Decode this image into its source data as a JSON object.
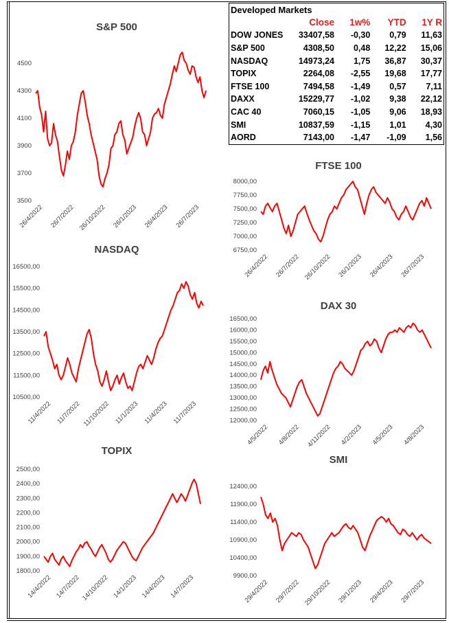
{
  "table": {
    "title": "Developed Markets",
    "headers": [
      "Close",
      "1w%",
      "YTD",
      "1Y R"
    ],
    "rows": [
      {
        "name": "DOW JONES",
        "close": "33407,58",
        "w1": "-0,30",
        "ytd": "0,79",
        "y1": "11,63"
      },
      {
        "name": "S&P 500",
        "close": "4308,50",
        "w1": "0,48",
        "ytd": "12,22",
        "y1": "15,06"
      },
      {
        "name": "NASDAQ",
        "close": "14973,24",
        "w1": "1,75",
        "ytd": "36,87",
        "y1": "30,37"
      },
      {
        "name": "TOPIX",
        "close": "2264,08",
        "w1": "-2,55",
        "ytd": "19,68",
        "y1": "17,77"
      },
      {
        "name": "FTSE 100",
        "close": "7494,58",
        "w1": "-1,49",
        "ytd": "0,57",
        "y1": "7,11"
      },
      {
        "name": "DAXX",
        "close": "15229,77",
        "w1": "-1,02",
        "ytd": "9,38",
        "y1": "22,12"
      },
      {
        "name": "CAC 40",
        "close": "7060,15",
        "w1": "-1,05",
        "ytd": "9,06",
        "y1": "18,93"
      },
      {
        "name": "SMI",
        "close": "10837,59",
        "w1": "-1,15",
        "ytd": "1,01",
        "y1": "4,30"
      },
      {
        "name": "AORD",
        "close": "7143,00",
        "w1": "-1,47",
        "ytd": "-1,09",
        "y1": "1,56"
      }
    ]
  },
  "colors": {
    "series": "#ff0000",
    "header": "#e02020",
    "axis_text": "#404040"
  },
  "chart_data": [
    {
      "id": "sp500",
      "type": "line",
      "title": "S&P 500",
      "ylim": [
        3500,
        4600
      ],
      "yticks": [
        "3500",
        "3700",
        "3900",
        "4100",
        "4300",
        "4500"
      ],
      "ytick_values": [
        3500,
        3700,
        3900,
        4100,
        4300,
        4500
      ],
      "xticks": [
        "26/4/2022",
        "26/7/2022",
        "26/10/2022",
        "26/1/2023",
        "26/4/2023",
        "26/7/2023"
      ],
      "series": [
        {
          "values": [
            4280,
            4300,
            4180,
            4120,
            4000,
            4150,
            3950,
            3900,
            3920,
            4060,
            3980,
            3930,
            3820,
            3720,
            3680,
            3760,
            3860,
            3800,
            3900,
            3930,
            4000,
            4120,
            4200,
            4280,
            4300,
            4220,
            4120,
            4060,
            3980,
            3920,
            3860,
            3800,
            3680,
            3620,
            3600,
            3660,
            3700,
            3760,
            3880,
            3900,
            3980,
            4000,
            4060,
            4080,
            3980,
            3940,
            3840,
            3880,
            3920,
            3960,
            4040,
            4100,
            4140,
            4100,
            4000,
            3980,
            3900,
            3950,
            4000,
            4100,
            4130,
            4140,
            4170,
            4120,
            4100,
            4200,
            4250,
            4300,
            4350,
            4420,
            4480,
            4440,
            4500,
            4560,
            4580,
            4520,
            4500,
            4450,
            4420,
            4480,
            4470,
            4400,
            4360,
            4400,
            4300,
            4250,
            4300
          ]
        }
      ]
    },
    {
      "id": "ftse100",
      "type": "line",
      "title": "FTSE 100",
      "ylim": [
        6750,
        8000
      ],
      "yticks": [
        "6750,00",
        "7000,00",
        "7250,00",
        "7500,00",
        "7750,00",
        "8000,00"
      ],
      "ytick_values": [
        6750,
        7000,
        7250,
        7500,
        7750,
        8000
      ],
      "xticks": [
        "26/4/2022",
        "26/7/2022",
        "26/10/2022",
        "26/1/2023",
        "26/4/2023",
        "26/7/2023"
      ],
      "series": [
        {
          "values": [
            7450,
            7400,
            7550,
            7600,
            7520,
            7450,
            7550,
            7600,
            7450,
            7300,
            7150,
            7050,
            7200,
            7000,
            7100,
            7250,
            7400,
            7450,
            7500,
            7550,
            7420,
            7300,
            7200,
            7100,
            7050,
            6950,
            6900,
            7000,
            7150,
            7300,
            7400,
            7450,
            7550,
            7500,
            7600,
            7700,
            7750,
            7850,
            7900,
            7950,
            8000,
            7900,
            7850,
            7700,
            7550,
            7400,
            7600,
            7750,
            7850,
            7900,
            7800,
            7750,
            7700,
            7650,
            7600,
            7700,
            7620,
            7500,
            7450,
            7350,
            7300,
            7400,
            7450,
            7550,
            7450,
            7350,
            7300,
            7400,
            7500,
            7600,
            7650,
            7550,
            7700,
            7600,
            7500
          ]
        }
      ]
    },
    {
      "id": "nasdaq",
      "type": "line",
      "title": "NASDAQ",
      "ylim": [
        10500,
        16500
      ],
      "yticks": [
        "10500,00",
        "11500,00",
        "12500,00",
        "13500,00",
        "14500,00",
        "15500,00",
        "16500,00"
      ],
      "ytick_values": [
        10500,
        11500,
        12500,
        13500,
        14500,
        15500,
        16500
      ],
      "xticks": [
        "11/4/2022",
        "11/7/2022",
        "11/10/2022",
        "11/1/2023",
        "11/4/2023",
        "11/7/2023"
      ],
      "series": [
        {
          "values": [
            13300,
            13500,
            12800,
            12500,
            12200,
            11800,
            12000,
            11500,
            11300,
            11500,
            11900,
            12300,
            12000,
            11600,
            11400,
            11200,
            11800,
            12200,
            12600,
            13000,
            13400,
            13600,
            13200,
            12500,
            12000,
            11700,
            11200,
            11000,
            11300,
            11700,
            11200,
            10800,
            11000,
            11300,
            11500,
            11100,
            11400,
            11600,
            11200,
            10900,
            11000,
            10800,
            11200,
            11600,
            11900,
            12000,
            11800,
            12100,
            12400,
            12200,
            12000,
            12300,
            12700,
            13000,
            13200,
            13300,
            13600,
            13900,
            14200,
            14500,
            14700,
            15000,
            15300,
            15400,
            15700,
            15500,
            15800,
            15600,
            15200,
            15000,
            15300,
            14800,
            14600,
            14900,
            14700
          ]
        }
      ]
    },
    {
      "id": "dax30",
      "type": "line",
      "title": "DAX 30",
      "ylim": [
        12000,
        16500
      ],
      "yticks": [
        "12000,00",
        "12500,00",
        "13000,00",
        "13500,00",
        "14000,00",
        "14500,00",
        "15000,00",
        "15500,00",
        "16000,00",
        "16500,00"
      ],
      "ytick_values": [
        12000,
        12500,
        13000,
        13500,
        14000,
        14500,
        15000,
        15500,
        16000,
        16500
      ],
      "xticks": [
        "4/5/2022",
        "4/8/2022",
        "4/11/2022",
        "4/2/2023",
        "4/5/2023",
        "4/8/2023"
      ],
      "series": [
        {
          "values": [
            13800,
            14200,
            14400,
            14100,
            14600,
            14200,
            13900,
            13600,
            13400,
            13200,
            13100,
            13000,
            12800,
            12600,
            12900,
            13200,
            13500,
            13700,
            13800,
            13500,
            13200,
            13000,
            12800,
            12600,
            12400,
            12200,
            12300,
            12600,
            12900,
            13200,
            13500,
            13800,
            14100,
            14300,
            14400,
            14600,
            14500,
            14300,
            14200,
            14100,
            14000,
            14200,
            14500,
            14800,
            15100,
            15200,
            15400,
            15500,
            15300,
            15400,
            15600,
            15500,
            15200,
            15000,
            15300,
            15600,
            15800,
            15900,
            15900,
            16000,
            15900,
            16100,
            16000,
            15900,
            16100,
            16200,
            16100,
            16300,
            16200,
            16000,
            15900,
            16000,
            15800,
            15600,
            15400,
            15200
          ]
        }
      ]
    },
    {
      "id": "topix",
      "type": "line",
      "title": "TOPIX",
      "ylim": [
        1800,
        2500
      ],
      "yticks": [
        "1800,00",
        "1900,00",
        "2000,00",
        "2100,00",
        "2200,00",
        "2300,00",
        "2400,00",
        "2500,00"
      ],
      "ytick_values": [
        1800,
        1900,
        2000,
        2100,
        2200,
        2300,
        2400,
        2500
      ],
      "xticks": [
        "14/4/2022",
        "14/7/2022",
        "14/10/2022",
        "14/1/2023",
        "14/4/2023",
        "14/7/2023"
      ],
      "series": [
        {
          "values": [
            1900,
            1880,
            1860,
            1900,
            1920,
            1880,
            1860,
            1840,
            1880,
            1900,
            1870,
            1850,
            1830,
            1870,
            1900,
            1930,
            1950,
            1980,
            1960,
            1990,
            2000,
            1970,
            1950,
            1920,
            1900,
            1930,
            1960,
            1980,
            1950,
            1920,
            1880,
            1860,
            1880,
            1910,
            1940,
            1960,
            1980,
            2000,
            1990,
            1960,
            1930,
            1900,
            1880,
            1870,
            1900,
            1930,
            1960,
            1980,
            2000,
            2020,
            2040,
            2060,
            2090,
            2120,
            2150,
            2180,
            2210,
            2240,
            2270,
            2300,
            2330,
            2300,
            2270,
            2300,
            2330,
            2310,
            2280,
            2320,
            2360,
            2400,
            2430,
            2400,
            2330,
            2260
          ]
        }
      ]
    },
    {
      "id": "smi",
      "type": "line",
      "title": "SMI",
      "ylim": [
        9900,
        12400
      ],
      "yticks": [
        "9900,00",
        "10400,00",
        "10900,00",
        "11400,00",
        "11900,00",
        "12400,00"
      ],
      "ytick_values": [
        9900,
        10400,
        10900,
        11400,
        11900,
        12400
      ],
      "xticks": [
        "29/4/2022",
        "29/7/2022",
        "29/10/2022",
        "29/1/2023",
        "29/4/2023",
        "29/7/2023"
      ],
      "series": [
        {
          "values": [
            12100,
            11900,
            11600,
            11500,
            11650,
            11400,
            11500,
            11300,
            10900,
            10600,
            10800,
            10900,
            11000,
            11100,
            11050,
            11000,
            11100,
            11050,
            10900,
            10800,
            10700,
            10500,
            10300,
            10100,
            10200,
            10400,
            10600,
            10800,
            10900,
            11000,
            11100,
            11000,
            11050,
            11100,
            11200,
            11300,
            11350,
            11250,
            11200,
            11300,
            11200,
            11100,
            10900,
            10700,
            10600,
            10800,
            11000,
            11150,
            11300,
            11450,
            11500,
            11550,
            11500,
            11400,
            11500,
            11350,
            11300,
            11200,
            11100,
            11050,
            11200,
            11150,
            11050,
            11000,
            11100,
            11000,
            10900,
            11000,
            11050,
            10950,
            10900,
            10850,
            10800
          ]
        }
      ]
    }
  ]
}
